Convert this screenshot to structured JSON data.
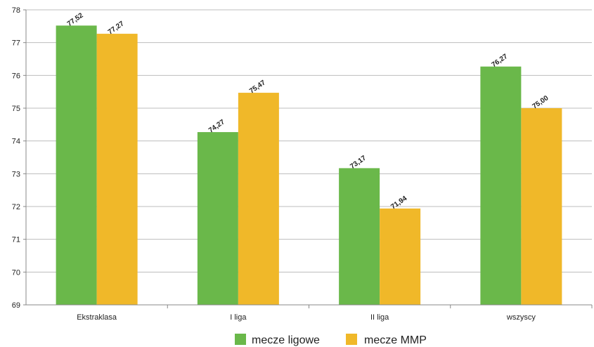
{
  "chart_data": {
    "type": "bar",
    "categories": [
      "Ekstraklasa",
      "I liga",
      "II liga",
      "wszyscy"
    ],
    "series": [
      {
        "name": "mecze ligowe",
        "color": "#6ab84a",
        "values": [
          77.52,
          74.27,
          73.17,
          76.27
        ],
        "labels": [
          "77,52",
          "74,27",
          "73,17",
          "76,27"
        ]
      },
      {
        "name": "mecze MMP",
        "color": "#f0b829",
        "values": [
          77.27,
          75.47,
          71.94,
          75.0
        ],
        "labels": [
          "77,27",
          "75,47",
          "71,94",
          "75,00"
        ]
      }
    ],
    "ylim": [
      69,
      78
    ],
    "yticks": [
      69,
      70,
      71,
      72,
      73,
      74,
      75,
      76,
      77,
      78
    ],
    "grid": true,
    "legend_position": "bottom",
    "title": "",
    "xlabel": "",
    "ylabel": ""
  }
}
